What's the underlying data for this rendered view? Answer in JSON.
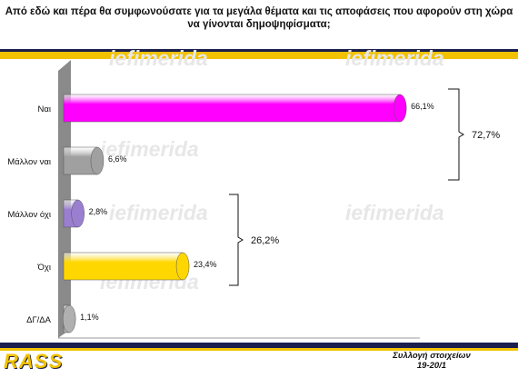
{
  "header": {
    "title_line1": "Από εδώ και πέρα θα συμφωνούσατε για τα μεγάλα θέματα και τις αποφάσεις που αφορούν στη χώρα",
    "title_line2": "να γίνονται δημοψηφίσματα;"
  },
  "watermark": "iefimerida",
  "footer": {
    "logo": "RASS",
    "source_line1": "Συλλογή στοιχείων",
    "source_line2": "19-20/1"
  },
  "colors": {
    "accent_yellow": "#f2c200",
    "band_navy": "#1a1f4d"
  },
  "chart_data": {
    "type": "bar",
    "orientation": "horizontal",
    "categories": [
      "Ναι",
      "Μάλλον ναι",
      "Μάλλον όχι",
      "Όχι",
      "ΔΓ/ΔΑ"
    ],
    "values": [
      66.1,
      6.6,
      2.8,
      23.4,
      1.1
    ],
    "value_labels": [
      "66,1%",
      "6,6%",
      "2,8%",
      "23,4%",
      "1,1%"
    ],
    "bar_colors": [
      "#ff00ff",
      "#a0a0a0",
      "#9a7fd0",
      "#ffd700",
      "#b0b0b0"
    ],
    "xlim": [
      0,
      70
    ],
    "x_ticks": [
      0,
      10,
      20,
      30,
      40,
      50,
      60,
      70
    ],
    "x_tick_labels": [
      "0%",
      "10%",
      "20%",
      "30%",
      "40%",
      "50%",
      "60%",
      "70%"
    ],
    "grid": false,
    "brackets": [
      {
        "label": "72,7%",
        "from": 0,
        "to": 1
      },
      {
        "label": "26,2%",
        "from": 2,
        "to": 3
      }
    ]
  }
}
